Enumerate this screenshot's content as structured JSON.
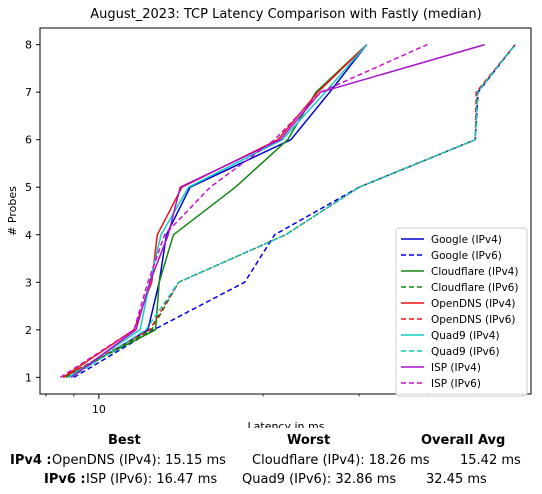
{
  "chart_data": {
    "type": "line",
    "title": "August_2023: TCP Latency Comparison with Fastly (median)",
    "xlabel": "Latency in ms",
    "ylabel": "# Probes",
    "xscale": "log",
    "xlim": [
      7.8,
      62
    ],
    "ylim": [
      0.65,
      8.35
    ],
    "xticks": [
      10
    ],
    "xtick_labels": [
      "10"
    ],
    "yticks": [
      1,
      2,
      3,
      4,
      5,
      6,
      7,
      8
    ],
    "grid": false,
    "legend_position": "lower-right",
    "series": [
      {
        "name": "Google (IPv4)",
        "color": "#0000cc",
        "dash": "solid",
        "points": [
          [
            8.8,
            1
          ],
          [
            12.3,
            2
          ],
          [
            12.9,
            3
          ],
          [
            13.3,
            4
          ],
          [
            14.7,
            5
          ],
          [
            22.5,
            6
          ],
          [
            26.5,
            7
          ],
          [
            31,
            8
          ]
        ]
      },
      {
        "name": "Google (IPv6)",
        "color": "#0000ee",
        "dash": "dashed",
        "points": [
          [
            9,
            1
          ],
          [
            12.6,
            2
          ],
          [
            18.5,
            3
          ],
          [
            21,
            4
          ],
          [
            30,
            5
          ],
          [
            49,
            6
          ],
          [
            49.6,
            7
          ],
          [
            58,
            8
          ]
        ]
      },
      {
        "name": "Cloudflare (IPv4)",
        "color": "#118811",
        "dash": "solid",
        "points": [
          [
            8.6,
            1
          ],
          [
            12.7,
            2
          ],
          [
            12.9,
            3
          ],
          [
            13.7,
            4
          ],
          [
            17.8,
            5
          ],
          [
            22.2,
            6
          ],
          [
            25,
            7
          ],
          [
            31,
            8
          ]
        ]
      },
      {
        "name": "Cloudflare (IPv6)",
        "color": "#118811",
        "dash": "dashed",
        "points": [
          [
            8.7,
            1
          ],
          [
            12.5,
            2
          ],
          [
            14,
            3
          ],
          [
            22,
            4
          ],
          [
            30,
            5
          ],
          [
            49,
            6
          ],
          [
            49.4,
            7
          ],
          [
            58,
            8
          ]
        ]
      },
      {
        "name": "OpenDNS (IPv4)",
        "color": "#ee1111",
        "dash": "solid",
        "points": [
          [
            8.6,
            1
          ],
          [
            11.6,
            2
          ],
          [
            12.5,
            3
          ],
          [
            12.8,
            4
          ],
          [
            14.2,
            5
          ],
          [
            21.3,
            6
          ],
          [
            25.2,
            7
          ],
          [
            31,
            8
          ]
        ]
      },
      {
        "name": "OpenDNS (IPv6)",
        "color": "#ee1111",
        "dash": "dashed",
        "points": [
          [
            8.6,
            1
          ],
          [
            12.4,
            2
          ],
          [
            14,
            3
          ],
          [
            22,
            4
          ],
          [
            30,
            5
          ],
          [
            49,
            6
          ],
          [
            49.2,
            7
          ],
          [
            58,
            8
          ]
        ]
      },
      {
        "name": "Quad9 (IPv4)",
        "color": "#11cccc",
        "dash": "solid",
        "points": [
          [
            8.8,
            1
          ],
          [
            11.9,
            2
          ],
          [
            12.4,
            3
          ],
          [
            13,
            4
          ],
          [
            14.6,
            5
          ],
          [
            21.7,
            6
          ],
          [
            26,
            7
          ],
          [
            31,
            8
          ]
        ]
      },
      {
        "name": "Quad9 (IPv6)",
        "color": "#11cccc",
        "dash": "dashed",
        "points": [
          [
            8.9,
            1
          ],
          [
            12.2,
            2
          ],
          [
            14,
            3
          ],
          [
            22,
            4
          ],
          [
            30,
            5
          ],
          [
            49,
            6
          ],
          [
            49.5,
            7
          ],
          [
            58,
            8
          ]
        ]
      },
      {
        "name": "ISP (IPv4)",
        "color": "#aa11cc",
        "dash": "solid",
        "points": [
          [
            8.9,
            1
          ],
          [
            11.7,
            2
          ],
          [
            12.4,
            3
          ],
          [
            13.4,
            4
          ],
          [
            14.1,
            5
          ],
          [
            21.5,
            6
          ],
          [
            25.5,
            7
          ],
          [
            51,
            8
          ]
        ]
      },
      {
        "name": "ISP (IPv6)",
        "color": "#cc11cc",
        "dash": "dashed",
        "points": [
          [
            8.5,
            1
          ],
          [
            11.6,
            2
          ],
          [
            12.3,
            3
          ],
          [
            13.2,
            4
          ],
          [
            16,
            5
          ],
          [
            21,
            6
          ],
          [
            25.5,
            7
          ],
          [
            40,
            8
          ]
        ]
      }
    ]
  },
  "summary": {
    "headers": {
      "best": "Best",
      "worst": "Worst",
      "avg": "Overall Avg"
    },
    "rows": [
      {
        "label": "IPv4 :",
        "best": "OpenDNS (IPv4): 15.15 ms",
        "worst": "Cloudflare (IPv4): 18.26 ms",
        "avg": "15.42 ms"
      },
      {
        "label": "IPv6 :",
        "best": "ISP (IPv6): 16.47 ms",
        "worst": "Quad9 (IPv6): 32.86 ms",
        "avg": "32.45 ms"
      }
    ]
  }
}
